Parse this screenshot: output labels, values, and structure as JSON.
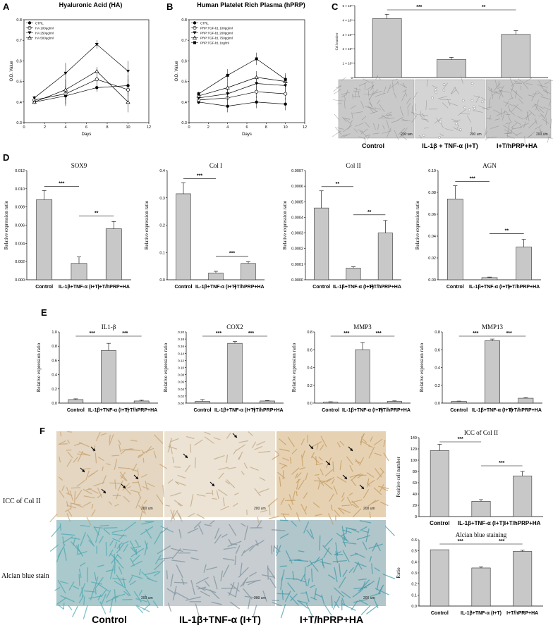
{
  "panel_labels": {
    "a": "A",
    "b": "B",
    "c": "C",
    "d": "D",
    "e": "E",
    "f": "F"
  },
  "colors": {
    "bar": "#c8c8c8",
    "bar_stroke": "#333333",
    "line": "#000000",
    "hist_bg": "#dcdcdc",
    "brown": "#c8a070",
    "blue": "#4aa6b0"
  },
  "chart_data": [
    {
      "id": "A",
      "type": "line",
      "title": "Hyaluronic Acid (HA)",
      "xlabel": "Days",
      "ylabel": "O.D. Value",
      "xlim": [
        0,
        12
      ],
      "ylim": [
        0.3,
        0.8
      ],
      "xticks": [
        0,
        2,
        4,
        6,
        8,
        10,
        12
      ],
      "yticks": [
        0.3,
        0.4,
        0.5,
        0.6,
        0.7,
        0.8
      ],
      "x": [
        1,
        4,
        7,
        10
      ],
      "series": [
        {
          "name": "CTRL",
          "marker": "circle-filled",
          "values": [
            0.4,
            0.43,
            0.47,
            0.48
          ]
        },
        {
          "name": "HA 100μg/ml",
          "marker": "circle-open",
          "values": [
            0.41,
            0.44,
            0.51,
            0.46
          ]
        },
        {
          "name": "HA 250μg/ml",
          "marker": "triangle-down",
          "values": [
            0.42,
            0.54,
            0.68,
            0.55
          ]
        },
        {
          "name": "HA 500μg/ml",
          "marker": "triangle-up",
          "values": [
            0.4,
            0.46,
            0.55,
            0.4
          ]
        }
      ],
      "errors": [
        0.01,
        0.05,
        0.02,
        0.05
      ]
    },
    {
      "id": "B",
      "type": "line",
      "title": "Human Platelet Rich Plasma (hPRP)",
      "xlabel": "Days",
      "ylabel": "O.D. Value",
      "xlim": [
        0,
        12
      ],
      "ylim": [
        0.3,
        0.8
      ],
      "xticks": [
        0,
        2,
        4,
        6,
        8,
        10,
        12
      ],
      "yticks": [
        0.3,
        0.4,
        0.5,
        0.6,
        0.7,
        0.8
      ],
      "x": [
        1,
        4,
        7,
        10
      ],
      "series": [
        {
          "name": "CTRL",
          "marker": "circle-filled",
          "values": [
            0.4,
            0.38,
            0.4,
            0.39
          ]
        },
        {
          "name": "PRP:TGF-b1 100pg/ml",
          "marker": "circle-open",
          "values": [
            0.41,
            0.42,
            0.45,
            0.44
          ]
        },
        {
          "name": "PRP:TGF-b1 200pg/ml",
          "marker": "triangle-down",
          "values": [
            0.42,
            0.44,
            0.49,
            0.48
          ]
        },
        {
          "name": "PRP:TGF-b1 750pg/ml",
          "marker": "triangle-up",
          "values": [
            0.43,
            0.47,
            0.52,
            0.5
          ]
        },
        {
          "name": "PRP:TGF-b1 1ng/ml",
          "marker": "square",
          "values": [
            0.44,
            0.53,
            0.61,
            0.51
          ]
        }
      ],
      "errors": [
        0.01,
        0.03,
        0.03,
        0.03
      ]
    },
    {
      "id": "C",
      "type": "bar",
      "title": "",
      "ylabel": "Cell number",
      "ylim": [
        0,
        500000
      ],
      "yticks": [
        "0",
        "1 × 10⁵",
        "2 × 10⁵",
        "3 × 10⁵",
        "4 × 10⁵",
        "5 × 10⁵"
      ],
      "categories": [
        "Control",
        "IL-1β + TNF-α (I+T)",
        "I+T/hPRP+HA"
      ],
      "values": [
        410000,
        125000,
        300000
      ],
      "errors": [
        30000,
        15000,
        25000
      ],
      "sig": [
        {
          "from": 0,
          "to": 1,
          "label": "***"
        },
        {
          "from": 1,
          "to": 2,
          "label": "**"
        }
      ]
    },
    {
      "id": "D1",
      "type": "bar",
      "title": "SOX9",
      "ylabel": "Relative expression ratio",
      "ylim": [
        0,
        0.012
      ],
      "yticks": [
        "0.000",
        "0.002",
        "0.004",
        "0.006",
        "0.008",
        "0.010",
        "0.012"
      ],
      "categories": [
        "Control",
        "IL-1β+TNF-α (I+T)",
        "I+T/hPRP+HA"
      ],
      "values": [
        0.0088,
        0.0018,
        0.0056
      ],
      "errors": [
        0.001,
        0.0007,
        0.0008
      ],
      "sig": [
        {
          "from": 0,
          "to": 1,
          "label": "***"
        },
        {
          "from": 1,
          "to": 2,
          "label": "**"
        }
      ]
    },
    {
      "id": "D2",
      "type": "bar",
      "title": "Col I",
      "ylabel": "Relative expression ratio",
      "ylim": [
        0,
        0.4
      ],
      "yticks": [
        "0.0",
        "0.1",
        "0.2",
        "0.3",
        "0.4"
      ],
      "categories": [
        "Control",
        "IL-1β+TNF-α (I+T)",
        "I+T/hPRP+HA"
      ],
      "values": [
        0.315,
        0.025,
        0.06
      ],
      "errors": [
        0.04,
        0.006,
        0.006
      ],
      "sig": [
        {
          "from": 0,
          "to": 1,
          "label": "***"
        },
        {
          "from": 1,
          "to": 2,
          "label": "***"
        }
      ]
    },
    {
      "id": "D3",
      "type": "bar",
      "title": "Col II",
      "ylabel": "Relative expression ratio",
      "ylim": [
        0,
        0.0007
      ],
      "yticks": [
        "0.0000",
        "0.0001",
        "0.0002",
        "0.0003",
        "0.0004",
        "0.0005",
        "0.0006",
        "0.0007"
      ],
      "categories": [
        "Control",
        "IL-1β+TNF-α (I+T)",
        "I+T/hPRP+HA"
      ],
      "values": [
        0.00046,
        7.5e-05,
        0.0003
      ],
      "errors": [
        0.00011,
        8e-06,
        8e-05
      ],
      "sig": [
        {
          "from": 0,
          "to": 1,
          "label": "**"
        },
        {
          "from": 1,
          "to": 2,
          "label": "**"
        }
      ]
    },
    {
      "id": "D4",
      "type": "bar",
      "title": "AGN",
      "ylabel": "Relative expression ratio",
      "ylim": [
        0,
        0.1
      ],
      "yticks": [
        "0.00",
        "0.02",
        "0.04",
        "0.06",
        "0.08",
        "0.10"
      ],
      "categories": [
        "Control",
        "IL-1β+TNF-α (I+T)",
        "I+T/hPRP+HA"
      ],
      "values": [
        0.074,
        0.002,
        0.03
      ],
      "errors": [
        0.012,
        0.0005,
        0.007
      ],
      "sig": [
        {
          "from": 0,
          "to": 1,
          "label": "***"
        },
        {
          "from": 1,
          "to": 2,
          "label": "**"
        }
      ]
    },
    {
      "id": "E1",
      "type": "bar",
      "title": "IL1-β",
      "ylabel": "Relative expression ratio",
      "ylim": [
        0,
        1.0
      ],
      "yticks": [
        "0.0",
        "0.2",
        "0.4",
        "0.6",
        "0.8",
        "1.0"
      ],
      "categories": [
        "Control",
        "IL-1β+TNF-α (I+T)",
        "I+T/hPRP+HA"
      ],
      "values": [
        0.05,
        0.74,
        0.03
      ],
      "errors": [
        0.01,
        0.1,
        0.01
      ],
      "sig": [
        {
          "from": 0,
          "to": 1,
          "label": "***"
        },
        {
          "from": 1,
          "to": 2,
          "label": "***"
        }
      ]
    },
    {
      "id": "E2",
      "type": "bar",
      "title": "COX2",
      "ylabel": "Relative expression ratio",
      "ylim": [
        0,
        0.2
      ],
      "yticks": [
        "0.00",
        "0.02",
        "0.04",
        "0.06",
        "0.08",
        "0.10",
        "0.12",
        "0.14",
        "0.16",
        "0.18",
        "0.20"
      ],
      "categories": [
        "Control",
        "IL-1β+TNF-α (I+T)",
        "I+T/hPRP+HA"
      ],
      "values": [
        0.005,
        0.168,
        0.006
      ],
      "errors": [
        0.005,
        0.005,
        0.001
      ],
      "sig": [
        {
          "from": 0,
          "to": 1,
          "label": "***"
        },
        {
          "from": 1,
          "to": 2,
          "label": "***"
        }
      ]
    },
    {
      "id": "E3",
      "type": "bar",
      "title": "MMP3",
      "ylabel": "Relative expression ratio",
      "ylim": [
        0,
        0.8
      ],
      "yticks": [
        "0.0",
        "0.2",
        "0.4",
        "0.6",
        "0.8"
      ],
      "categories": [
        "Control",
        "IL-1β+TNF-α (I+T)",
        "I+T/hPRP+HA"
      ],
      "values": [
        0.01,
        0.6,
        0.02
      ],
      "errors": [
        0.005,
        0.08,
        0.005
      ],
      "sig": [
        {
          "from": 0,
          "to": 1,
          "label": "***"
        },
        {
          "from": 1,
          "to": 2,
          "label": "***"
        }
      ]
    },
    {
      "id": "E4",
      "type": "bar",
      "title": "MMP13",
      "ylabel": "Relative expression ratio",
      "ylim": [
        0,
        0.8
      ],
      "yticks": [
        "0.0",
        "0.2",
        "0.4",
        "0.6",
        "0.8"
      ],
      "categories": [
        "Control",
        "IL-1β+TNF-α (I+T)",
        "I+T/hPRP+HA"
      ],
      "values": [
        0.02,
        0.7,
        0.055
      ],
      "errors": [
        0.003,
        0.02,
        0.005
      ],
      "sig": [
        {
          "from": 0,
          "to": 1,
          "label": "***"
        },
        {
          "from": 1,
          "to": 2,
          "label": "***"
        }
      ]
    },
    {
      "id": "F1",
      "type": "bar",
      "title": "ICC of Col II",
      "ylabel": "Positive cell number",
      "ylim": [
        0,
        140
      ],
      "yticks": [
        "0",
        "20",
        "40",
        "60",
        "80",
        "100",
        "120",
        "140"
      ],
      "categories": [
        "Control",
        "IL-1β+TNF-α (I+T)",
        "I+T/hPRP+HA"
      ],
      "values": [
        117,
        27,
        72
      ],
      "errors": [
        11,
        3,
        8
      ],
      "sig": [
        {
          "from": 0,
          "to": 1,
          "label": "***"
        },
        {
          "from": 1,
          "to": 2,
          "label": "***"
        }
      ]
    },
    {
      "id": "F2",
      "type": "bar",
      "title": "Alcian blue staining",
      "ylabel": "Ratio",
      "ylim": [
        0,
        0.6
      ],
      "yticks": [
        "0.0",
        "0.1",
        "0.2",
        "0.3",
        "0.4",
        "0.5",
        "0.6"
      ],
      "categories": [
        "Control",
        "IL-1β+TNF-α (I+T)",
        "I+T/hPRP+HA"
      ],
      "values": [
        0.51,
        0.345,
        0.495
      ],
      "errors": [
        0.0,
        0.01,
        0.01
      ],
      "sig": [
        {
          "from": 0,
          "to": 1,
          "label": "***"
        },
        {
          "from": 1,
          "to": 2,
          "label": "***"
        }
      ]
    }
  ],
  "photos": {
    "c_labels": [
      "Control",
      "IL-1β + TNF-α (I+T)",
      "I+T/hPRP+HA"
    ],
    "f_row_labels": [
      "ICC of Col II",
      "Alcian blue stain"
    ],
    "f_col_labels": [
      "Control",
      "IL-1β+TNF-α (I+T)",
      "I+T/hPRP+HA"
    ],
    "scale_c": "200 um",
    "scale_f": "200 um"
  }
}
